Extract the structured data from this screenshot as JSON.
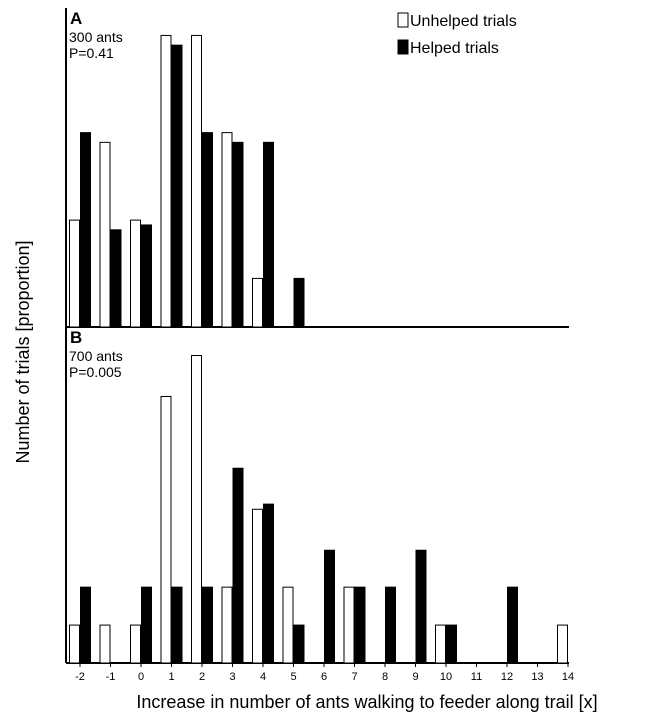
{
  "chart_data": {
    "type": "bar",
    "xlabel": "Increase in number of ants walking to feeder along trail [x]",
    "ylabel": "Number of trials [proportion]",
    "grouped": true,
    "legend": {
      "placement": "top-right",
      "entries": [
        {
          "name": "Unhelped trials",
          "color": "#ffffff"
        },
        {
          "name": "Helped trials",
          "color": "#000000"
        }
      ]
    },
    "categories": [
      "-2",
      "-1",
      "0",
      "1",
      "2",
      "3",
      "4",
      "5",
      "6",
      "7",
      "8",
      "9",
      "10",
      "11",
      "12",
      "13",
      "14"
    ],
    "colors": {
      "unhelped": "#ffffff",
      "helped": "#000000",
      "stroke": "#000000"
    },
    "panels": [
      {
        "letter": "A",
        "note_lines": [
          "300 ants",
          "P=0.41"
        ],
        "ylim": [
          0,
          0.32
        ],
        "series": [
          {
            "name": "Unhelped trials",
            "values": [
              0.11,
              0.19,
              0.11,
              0.3,
              0.3,
              0.2,
              0.05,
              0,
              0,
              0,
              0,
              0,
              0,
              0,
              0,
              0,
              0
            ]
          },
          {
            "name": "Helped trials",
            "values": [
              0.2,
              0.1,
              0.105,
              0.29,
              0.2,
              0.19,
              0.19,
              0.05,
              0,
              0,
              0,
              0,
              0,
              0,
              0,
              0,
              0
            ]
          }
        ]
      },
      {
        "letter": "B",
        "note_lines": [
          "700 ants",
          "P=0.005"
        ],
        "ylim": [
          0,
          0.32
        ],
        "series": [
          {
            "name": "Unhelped trials",
            "values": [
              0.037,
              0.037,
              0.037,
              0.26,
              0.3,
              0.074,
              0.15,
              0.074,
              0,
              0.074,
              0,
              0,
              0.037,
              0,
              0,
              0,
              0.037
            ]
          },
          {
            "name": "Helped trials",
            "values": [
              0.074,
              0,
              0.074,
              0.074,
              0.074,
              0.19,
              0.155,
              0.037,
              0.11,
              0.074,
              0.074,
              0.11,
              0.037,
              0,
              0.074,
              0,
              0
            ]
          }
        ]
      }
    ]
  }
}
